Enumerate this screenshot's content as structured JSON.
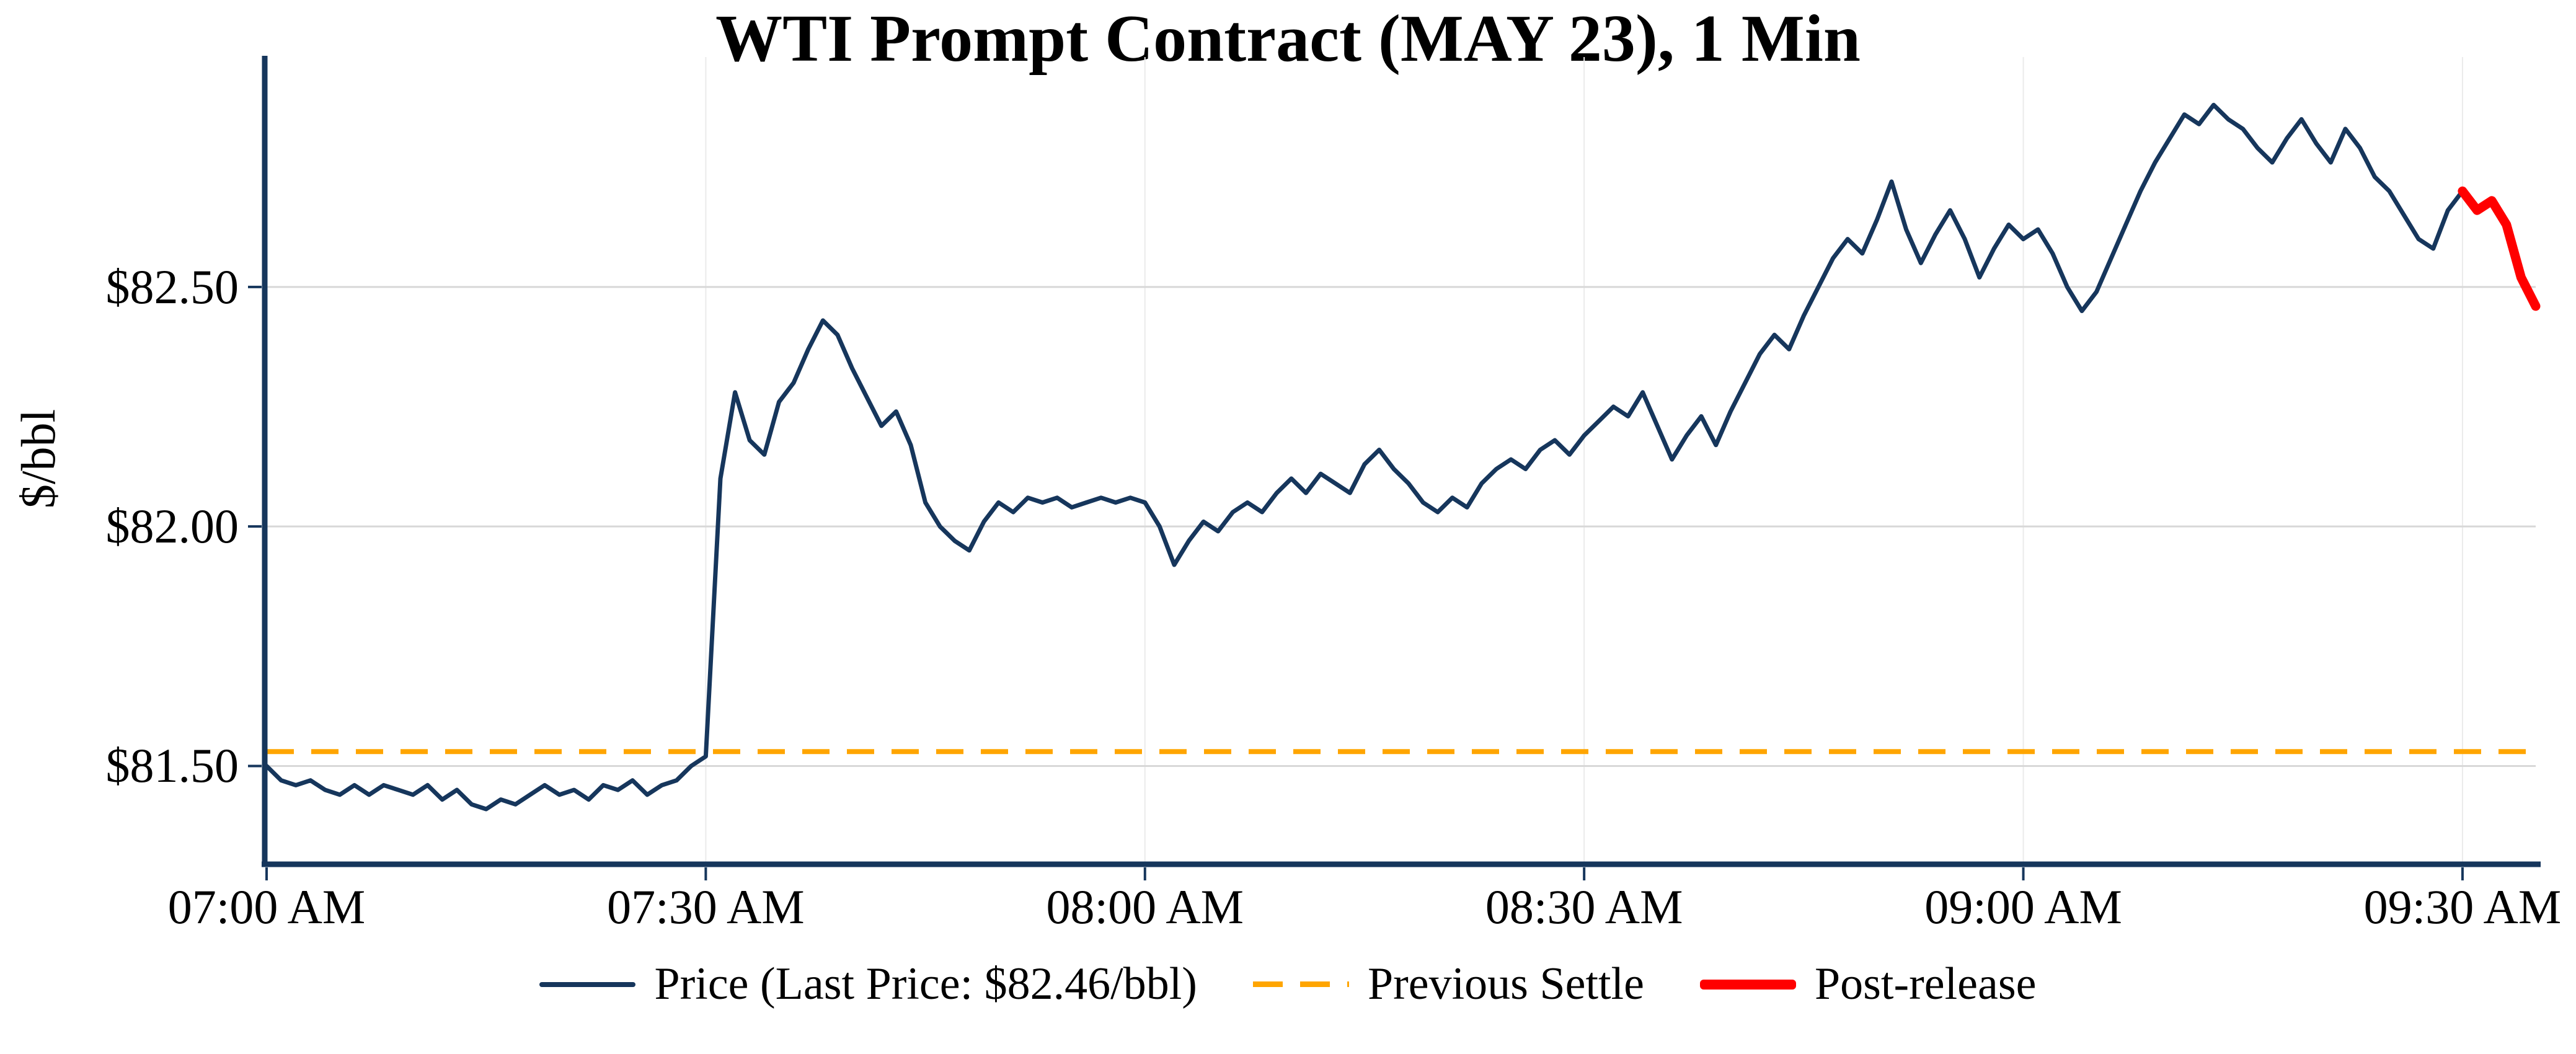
{
  "page": {
    "background": "#ffffff"
  },
  "chart_data": {
    "type": "line",
    "title": "WTI Prompt Contract (MAY 23), 1 Min",
    "ylabel": "$/bbl",
    "xlabel": "",
    "grid": true,
    "last_price": 82.46,
    "previous_settle": 81.53,
    "x_axis": {
      "tick_labels": [
        "07:00 AM",
        "07:30 AM",
        "08:00 AM",
        "08:30 AM",
        "09:00 AM",
        "09:30 AM"
      ],
      "tick_minutes": [
        0,
        30,
        60,
        90,
        120,
        150
      ],
      "lim_minutes": [
        0,
        155
      ],
      "start_time": "07:00 AM"
    },
    "y_axis": {
      "ticks": [
        81.5,
        82.0,
        82.5
      ],
      "tick_labels": [
        "$81.50",
        "$82.00",
        "$82.50"
      ],
      "lim": [
        81.3,
        82.98
      ]
    },
    "colors": {
      "price": "#16365c",
      "previous_settle": "#FFA500",
      "post_release": "#FF0000",
      "grid_major": "#d8d8d8",
      "grid_minor_vertical": "#ebebeb",
      "axis": "#16365c",
      "text": "#000000"
    },
    "legend": [
      {
        "label": "Price (Last Price: $82.46/bbl)",
        "color_key": "price",
        "style": "solid"
      },
      {
        "label": "Previous Settle",
        "color_key": "previous_settle",
        "style": "dashed"
      },
      {
        "label": "Post-release",
        "color_key": "post_release",
        "style": "solid-thick"
      }
    ],
    "series": [
      {
        "name": "Price",
        "color_key": "price",
        "start_minute": 0,
        "interval_minutes": 1,
        "stroke_width": 7,
        "values": [
          81.5,
          81.47,
          81.46,
          81.47,
          81.45,
          81.44,
          81.46,
          81.44,
          81.46,
          81.45,
          81.44,
          81.46,
          81.43,
          81.45,
          81.42,
          81.41,
          81.43,
          81.42,
          81.44,
          81.46,
          81.44,
          81.45,
          81.43,
          81.46,
          81.45,
          81.47,
          81.44,
          81.46,
          81.47,
          81.5,
          81.52,
          82.1,
          82.28,
          82.18,
          82.15,
          82.26,
          82.3,
          82.37,
          82.43,
          82.4,
          82.33,
          82.27,
          82.21,
          82.24,
          82.17,
          82.05,
          82.0,
          81.97,
          81.95,
          82.01,
          82.05,
          82.03,
          82.06,
          82.05,
          82.06,
          82.04,
          82.05,
          82.06,
          82.05,
          82.06,
          82.05,
          82.0,
          81.92,
          81.97,
          82.01,
          81.99,
          82.03,
          82.05,
          82.03,
          82.07,
          82.1,
          82.07,
          82.11,
          82.09,
          82.07,
          82.13,
          82.16,
          82.12,
          82.09,
          82.05,
          82.03,
          82.06,
          82.04,
          82.09,
          82.12,
          82.14,
          82.12,
          82.16,
          82.18,
          82.15,
          82.19,
          82.22,
          82.25,
          82.23,
          82.28,
          82.21,
          82.14,
          82.19,
          82.23,
          82.17,
          82.24,
          82.3,
          82.36,
          82.4,
          82.37,
          82.44,
          82.5,
          82.56,
          82.6,
          82.57,
          82.64,
          82.72,
          82.62,
          82.55,
          82.61,
          82.66,
          82.6,
          82.52,
          82.58,
          82.63,
          82.6,
          82.62,
          82.57,
          82.5,
          82.45,
          82.49,
          82.56,
          82.63,
          82.7,
          82.76,
          82.81,
          82.86,
          82.84,
          82.88,
          82.85,
          82.83,
          82.79,
          82.76,
          82.81,
          82.85,
          82.8,
          82.76,
          82.83,
          82.79,
          82.73,
          82.7,
          82.65,
          82.6,
          82.58,
          82.66,
          82.7
        ]
      },
      {
        "name": "Post-release",
        "color_key": "post_release",
        "start_minute": 150,
        "interval_minutes": 1,
        "stroke_width": 15,
        "values": [
          82.7,
          82.66,
          82.68,
          82.63,
          82.52,
          82.46
        ]
      }
    ]
  }
}
